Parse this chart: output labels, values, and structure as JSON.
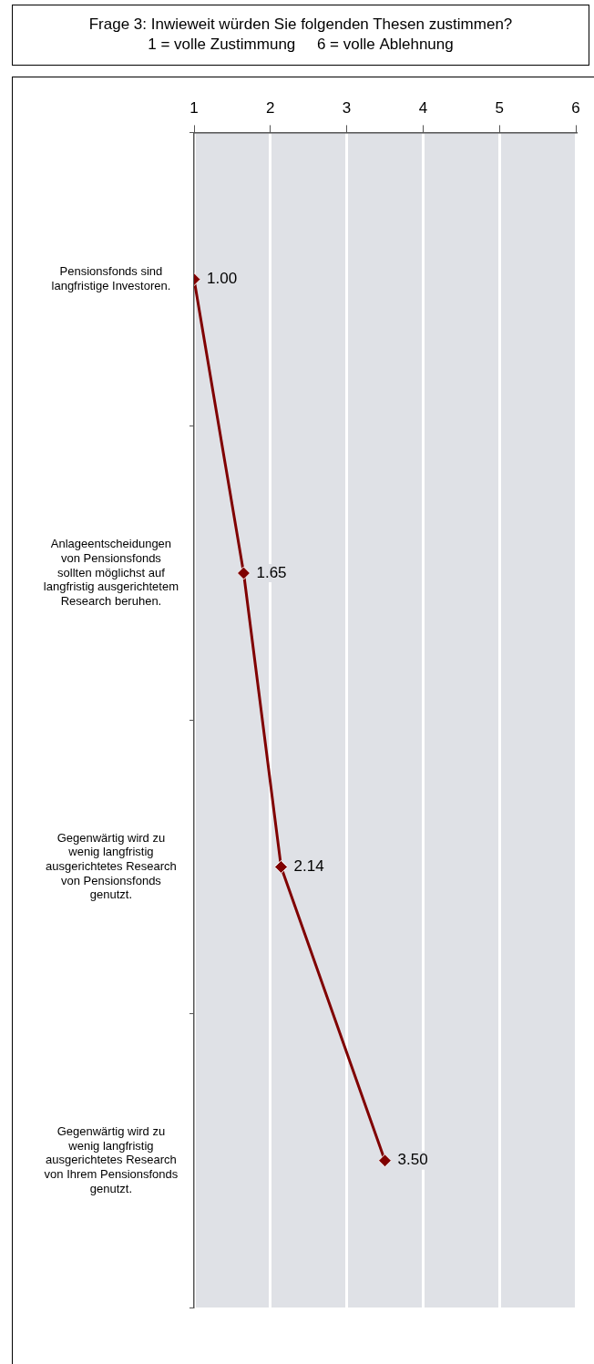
{
  "chart_data": {
    "type": "line",
    "orientation": "horizontal",
    "title": "Frage 3: Inwieweit würden Sie folgenden Thesen zustimmen?",
    "subtitle": "1 = volle Zustimmung     6 = volle Ablehnung",
    "categories": [
      "Pensionsfonds sind langfristige Investoren.",
      "Anlageentscheidungen von Pensionsfonds sollten möglichst auf langfristig ausgerichtetem Research beruhen.",
      "Gegenwärtig wird zu wenig langfristig ausgerichtetes Research von Pensionsfonds genutzt.",
      "Gegenwärtig wird zu wenig langfristig ausgerichtetes Research von Ihrem Pensionsfonds genutzt."
    ],
    "series": [
      {
        "color": "#800000",
        "values": [
          1.0,
          1.65,
          2.14,
          3.5
        ],
        "value_labels": [
          "1.00",
          "1.65",
          "2.14",
          "3.50"
        ]
      }
    ],
    "xlim": [
      1,
      6
    ],
    "xticks": [
      1,
      2,
      3,
      4,
      5,
      6
    ],
    "grid": "x",
    "legend": false,
    "marker": "diamond",
    "line_style": "solid"
  }
}
